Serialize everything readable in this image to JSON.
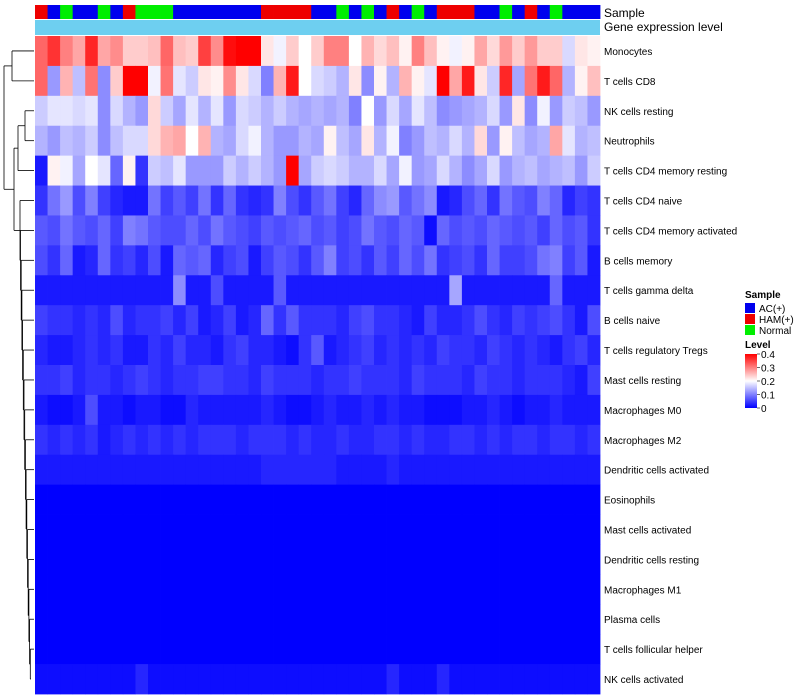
{
  "chart_data": {
    "type": "heatmap",
    "annotation_rows": [
      "Sample",
      "Gene expression level"
    ],
    "samples": [
      "HAM(+)",
      "AC(+)",
      "Normal",
      "AC(+)",
      "AC(+)",
      "Normal",
      "AC(+)",
      "HAM(+)",
      "Normal",
      "Normal",
      "Normal",
      "AC(+)",
      "AC(+)",
      "AC(+)",
      "AC(+)",
      "AC(+)",
      "AC(+)",
      "AC(+)",
      "HAM(+)",
      "HAM(+)",
      "HAM(+)",
      "HAM(+)",
      "AC(+)",
      "AC(+)",
      "Normal",
      "AC(+)",
      "Normal",
      "AC(+)",
      "HAM(+)",
      "AC(+)",
      "Normal",
      "AC(+)",
      "HAM(+)",
      "HAM(+)",
      "HAM(+)",
      "AC(+)",
      "AC(+)",
      "Normal",
      "AC(+)",
      "HAM(+)",
      "AC(+)",
      "Normal",
      "AC(+)",
      "AC(+)",
      "AC(+)"
    ],
    "rows": [
      {
        "label": "Monocytes",
        "values": [
          0.32,
          0.36,
          0.3,
          0.27,
          0.37,
          0.27,
          0.29,
          0.24,
          0.24,
          0.25,
          0.32,
          0.25,
          0.24,
          0.35,
          0.29,
          0.39,
          0.4,
          0.41,
          0.22,
          0.19,
          0.24,
          0.2,
          0.24,
          0.3,
          0.3,
          0.2,
          0.26,
          0.23,
          0.25,
          0.21,
          0.3,
          0.25,
          0.21,
          0.19,
          0.21,
          0.27,
          0.23,
          0.28,
          0.24,
          0.28,
          0.24,
          0.24,
          0.17,
          0.22,
          0.21
        ]
      },
      {
        "label": "T cells CD8",
        "values": [
          0.32,
          0.12,
          0.26,
          0.15,
          0.31,
          0.11,
          0.24,
          0.4,
          0.4,
          0.19,
          0.31,
          0.18,
          0.16,
          0.22,
          0.21,
          0.29,
          0.22,
          0.17,
          0.1,
          0.26,
          0.38,
          0.2,
          0.17,
          0.16,
          0.14,
          0.22,
          0.11,
          0.21,
          0.14,
          0.26,
          0.21,
          0.18,
          0.4,
          0.27,
          0.38,
          0.22,
          0.16,
          0.37,
          0.13,
          0.31,
          0.38,
          0.32,
          0.14,
          0.21,
          0.25
        ]
      },
      {
        "label": "NK cells resting",
        "values": [
          0.16,
          0.18,
          0.18,
          0.17,
          0.18,
          0.11,
          0.17,
          0.14,
          0.12,
          0.23,
          0.16,
          0.13,
          0.18,
          0.14,
          0.18,
          0.12,
          0.17,
          0.16,
          0.14,
          0.16,
          0.14,
          0.13,
          0.14,
          0.13,
          0.14,
          0.1,
          0.2,
          0.12,
          0.17,
          0.13,
          0.18,
          0.15,
          0.11,
          0.12,
          0.13,
          0.14,
          0.17,
          0.12,
          0.22,
          0.11,
          0.19,
          0.12,
          0.16,
          0.15,
          0.12
        ]
      },
      {
        "label": "Neutrophils",
        "values": [
          0.14,
          0.12,
          0.15,
          0.14,
          0.16,
          0.11,
          0.15,
          0.17,
          0.17,
          0.23,
          0.26,
          0.27,
          0.2,
          0.26,
          0.14,
          0.13,
          0.17,
          0.19,
          0.14,
          0.12,
          0.12,
          0.14,
          0.13,
          0.21,
          0.15,
          0.13,
          0.22,
          0.14,
          0.19,
          0.1,
          0.12,
          0.15,
          0.14,
          0.17,
          0.14,
          0.23,
          0.12,
          0.21,
          0.15,
          0.13,
          0.14,
          0.27,
          0.18,
          0.14,
          0.15
        ]
      },
      {
        "label": "T cells CD4 memory resting",
        "values": [
          0.02,
          0.21,
          0.19,
          0.13,
          0.2,
          0.18,
          0.08,
          0.21,
          0.04,
          0.16,
          0.15,
          0.18,
          0.12,
          0.12,
          0.12,
          0.16,
          0.14,
          0.16,
          0.14,
          0.12,
          0.42,
          0.13,
          0.16,
          0.17,
          0.16,
          0.14,
          0.14,
          0.17,
          0.13,
          0.19,
          0.12,
          0.13,
          0.17,
          0.14,
          0.11,
          0.13,
          0.17,
          0.12,
          0.14,
          0.15,
          0.13,
          0.14,
          0.15,
          0.12,
          0.16
        ]
      },
      {
        "label": "T cells CD4 naive",
        "values": [
          0.04,
          0.09,
          0.12,
          0.06,
          0.1,
          0.05,
          0.03,
          0.02,
          0.02,
          0.09,
          0.05,
          0.07,
          0.05,
          0.09,
          0.04,
          0.08,
          0.04,
          0.03,
          0.04,
          0.1,
          0.06,
          0.04,
          0.07,
          0.09,
          0.05,
          0.03,
          0.08,
          0.11,
          0.12,
          0.07,
          0.09,
          0.11,
          0.02,
          0.03,
          0.06,
          0.08,
          0.04,
          0.09,
          0.07,
          0.06,
          0.1,
          0.08,
          0.03,
          0.05,
          0.04
        ]
      },
      {
        "label": "T cells CD4 memory activated",
        "values": [
          0.07,
          0.06,
          0.09,
          0.07,
          0.06,
          0.08,
          0.05,
          0.1,
          0.09,
          0.07,
          0.06,
          0.06,
          0.08,
          0.06,
          0.09,
          0.07,
          0.06,
          0.05,
          0.07,
          0.06,
          0.07,
          0.08,
          0.06,
          0.07,
          0.05,
          0.06,
          0.09,
          0.07,
          0.06,
          0.08,
          0.07,
          0.01,
          0.08,
          0.06,
          0.07,
          0.06,
          0.08,
          0.07,
          0.06,
          0.07,
          0.05,
          0.08,
          0.06,
          0.07,
          0.04
        ]
      },
      {
        "label": "B cells memory",
        "values": [
          0.06,
          0.04,
          0.08,
          0.02,
          0.03,
          0.08,
          0.04,
          0.05,
          0.03,
          0.06,
          0.02,
          0.08,
          0.07,
          0.08,
          0.03,
          0.05,
          0.06,
          0.02,
          0.05,
          0.07,
          0.06,
          0.04,
          0.07,
          0.1,
          0.05,
          0.06,
          0.04,
          0.07,
          0.05,
          0.08,
          0.06,
          0.09,
          0.04,
          0.05,
          0.06,
          0.04,
          0.08,
          0.05,
          0.05,
          0.06,
          0.09,
          0.1,
          0.05,
          0.07,
          0.02
        ]
      },
      {
        "label": "T cells gamma delta",
        "values": [
          0.02,
          0.02,
          0.02,
          0.02,
          0.02,
          0.02,
          0.02,
          0.02,
          0.02,
          0.02,
          0.02,
          0.11,
          0.02,
          0.02,
          0.06,
          0.02,
          0.02,
          0.02,
          0.02,
          0.07,
          0.02,
          0.02,
          0.02,
          0.02,
          0.02,
          0.02,
          0.02,
          0.02,
          0.02,
          0.02,
          0.02,
          0.02,
          0.02,
          0.13,
          0.02,
          0.02,
          0.02,
          0.02,
          0.02,
          0.02,
          0.02,
          0.08,
          0.02,
          0.02,
          0.02
        ]
      },
      {
        "label": "B cells naive",
        "values": [
          0.05,
          0.04,
          0.04,
          0.03,
          0.04,
          0.03,
          0.06,
          0.03,
          0.04,
          0.04,
          0.05,
          0.03,
          0.05,
          0.02,
          0.03,
          0.05,
          0.02,
          0.03,
          0.08,
          0.04,
          0.07,
          0.04,
          0.04,
          0.04,
          0.03,
          0.05,
          0.06,
          0.04,
          0.04,
          0.03,
          0.02,
          0.05,
          0.03,
          0.03,
          0.04,
          0.06,
          0.04,
          0.03,
          0.05,
          0.04,
          0.05,
          0.06,
          0.04,
          0.02,
          0.06
        ]
      },
      {
        "label": "T cells regulatory  Tregs",
        "values": [
          0.03,
          0.02,
          0.02,
          0.03,
          0.04,
          0.03,
          0.04,
          0.02,
          0.02,
          0.04,
          0.03,
          0.05,
          0.03,
          0.03,
          0.02,
          0.04,
          0.05,
          0.03,
          0.03,
          0.02,
          0.01,
          0.04,
          0.07,
          0.02,
          0.03,
          0.04,
          0.05,
          0.03,
          0.04,
          0.03,
          0.04,
          0.03,
          0.05,
          0.04,
          0.04,
          0.03,
          0.05,
          0.04,
          0.03,
          0.04,
          0.03,
          0.02,
          0.04,
          0.05,
          0.03
        ]
      },
      {
        "label": "Mast cells resting",
        "values": [
          0.04,
          0.04,
          0.05,
          0.03,
          0.04,
          0.04,
          0.03,
          0.04,
          0.05,
          0.04,
          0.03,
          0.04,
          0.04,
          0.05,
          0.05,
          0.04,
          0.04,
          0.03,
          0.05,
          0.04,
          0.04,
          0.04,
          0.03,
          0.04,
          0.04,
          0.05,
          0.04,
          0.04,
          0.04,
          0.03,
          0.05,
          0.04,
          0.04,
          0.04,
          0.03,
          0.05,
          0.04,
          0.04,
          0.03,
          0.04,
          0.04,
          0.04,
          0.03,
          0.02,
          0.05
        ]
      },
      {
        "label": "Macrophages M0",
        "values": [
          0.02,
          0.01,
          0.01,
          0.02,
          0.06,
          0.02,
          0.02,
          0.01,
          0.02,
          0.02,
          0.01,
          0.01,
          0.03,
          0.02,
          0.02,
          0.02,
          0.02,
          0.02,
          0.03,
          0.02,
          0.01,
          0.01,
          0.02,
          0.03,
          0.02,
          0.02,
          0.03,
          0.02,
          0.03,
          0.02,
          0.02,
          0.01,
          0.01,
          0.01,
          0.02,
          0.02,
          0.03,
          0.02,
          0.01,
          0.02,
          0.02,
          0.03,
          0.02,
          0.02,
          0.02
        ]
      },
      {
        "label": "Macrophages M2",
        "values": [
          0.04,
          0.03,
          0.04,
          0.03,
          0.04,
          0.02,
          0.03,
          0.04,
          0.03,
          0.04,
          0.03,
          0.04,
          0.03,
          0.04,
          0.04,
          0.04,
          0.03,
          0.04,
          0.04,
          0.04,
          0.03,
          0.04,
          0.03,
          0.03,
          0.04,
          0.03,
          0.03,
          0.04,
          0.04,
          0.03,
          0.04,
          0.03,
          0.03,
          0.04,
          0.04,
          0.03,
          0.04,
          0.03,
          0.04,
          0.04,
          0.03,
          0.04,
          0.04,
          0.03,
          0.04
        ]
      },
      {
        "label": "Dendritic cells activated",
        "values": [
          0.02,
          0.02,
          0.02,
          0.02,
          0.02,
          0.02,
          0.02,
          0.02,
          0.02,
          0.02,
          0.02,
          0.02,
          0.02,
          0.02,
          0.02,
          0.02,
          0.02,
          0.02,
          0.03,
          0.03,
          0.03,
          0.03,
          0.03,
          0.03,
          0.02,
          0.02,
          0.02,
          0.02,
          0.03,
          0.02,
          0.02,
          0.02,
          0.02,
          0.02,
          0.02,
          0.02,
          0.02,
          0.02,
          0.02,
          0.02,
          0.02,
          0.02,
          0.02,
          0.02,
          0.02
        ]
      },
      {
        "label": "Eosinophils",
        "values": [
          0,
          0,
          0,
          0,
          0,
          0,
          0,
          0,
          0,
          0,
          0,
          0,
          0,
          0,
          0,
          0,
          0,
          0,
          0,
          0,
          0,
          0,
          0,
          0,
          0,
          0,
          0,
          0,
          0,
          0,
          0,
          0,
          0,
          0,
          0,
          0,
          0,
          0,
          0,
          0,
          0,
          0,
          0,
          0,
          0
        ]
      },
      {
        "label": "Mast cells activated",
        "values": [
          0,
          0,
          0,
          0,
          0,
          0,
          0,
          0,
          0,
          0,
          0,
          0,
          0,
          0,
          0,
          0,
          0,
          0,
          0,
          0,
          0,
          0,
          0,
          0,
          0,
          0,
          0,
          0,
          0,
          0,
          0,
          0,
          0,
          0,
          0,
          0,
          0,
          0,
          0,
          0,
          0,
          0,
          0,
          0,
          0
        ]
      },
      {
        "label": "Dendritic cells resting",
        "values": [
          0,
          0,
          0,
          0,
          0,
          0,
          0,
          0,
          0,
          0,
          0,
          0,
          0,
          0,
          0,
          0,
          0,
          0,
          0,
          0,
          0,
          0,
          0,
          0,
          0,
          0,
          0,
          0,
          0,
          0,
          0,
          0,
          0,
          0,
          0,
          0,
          0,
          0,
          0,
          0,
          0,
          0,
          0,
          0,
          0
        ]
      },
      {
        "label": "Macrophages M1",
        "values": [
          0,
          0,
          0,
          0,
          0,
          0,
          0,
          0,
          0,
          0,
          0,
          0,
          0,
          0,
          0,
          0,
          0,
          0,
          0,
          0,
          0,
          0,
          0,
          0,
          0,
          0,
          0,
          0,
          0,
          0,
          0,
          0,
          0,
          0,
          0,
          0,
          0,
          0,
          0,
          0,
          0,
          0,
          0,
          0,
          0
        ]
      },
      {
        "label": "Plasma cells",
        "values": [
          0,
          0,
          0,
          0,
          0,
          0,
          0,
          0,
          0,
          0,
          0,
          0,
          0,
          0,
          0,
          0,
          0,
          0,
          0,
          0,
          0,
          0,
          0,
          0,
          0,
          0,
          0,
          0,
          0,
          0,
          0,
          0,
          0,
          0,
          0,
          0,
          0,
          0,
          0,
          0,
          0,
          0,
          0,
          0,
          0
        ]
      },
      {
        "label": "T cells follicular helper",
        "values": [
          0,
          0,
          0,
          0,
          0,
          0,
          0,
          0,
          0,
          0,
          0,
          0,
          0,
          0,
          0,
          0,
          0,
          0,
          0,
          0,
          0,
          0,
          0,
          0,
          0,
          0,
          0,
          0,
          0,
          0,
          0,
          0,
          0,
          0,
          0,
          0,
          0,
          0,
          0,
          0,
          0,
          0,
          0,
          0,
          0
        ]
      },
      {
        "label": "NK cells activated",
        "values": [
          0.01,
          0.01,
          0.01,
          0.01,
          0.01,
          0.01,
          0.01,
          0.01,
          0.03,
          0.01,
          0.01,
          0.01,
          0.01,
          0.01,
          0.01,
          0.01,
          0.01,
          0.01,
          0.01,
          0.01,
          0.01,
          0.01,
          0.01,
          0.01,
          0.01,
          0.01,
          0.01,
          0.01,
          0.03,
          0.01,
          0.01,
          0.01,
          0.03,
          0.01,
          0.01,
          0.01,
          0.01,
          0.01,
          0.01,
          0.01,
          0.01,
          0.01,
          0.01,
          0.01,
          0.01
        ]
      }
    ],
    "legend": {
      "sample_title": "Sample",
      "sample_entries": [
        {
          "label": "AC(+)",
          "color": "#0000ee"
        },
        {
          "label": "HAM(+)",
          "color": "#ee0000"
        },
        {
          "label": "Normal",
          "color": "#00ee00"
        }
      ],
      "level_title": "Level",
      "level_ticks": [
        "0.4",
        "0.3",
        "0.2",
        "0.1",
        "0"
      ],
      "level_range": [
        0,
        0.4
      ],
      "placement": "right"
    },
    "colors": {
      "low": "#0000ff",
      "mid": "#ffffff",
      "high": "#ff0000",
      "expression_bar": "#6ecff0",
      "dendrogram": "#000000"
    }
  }
}
